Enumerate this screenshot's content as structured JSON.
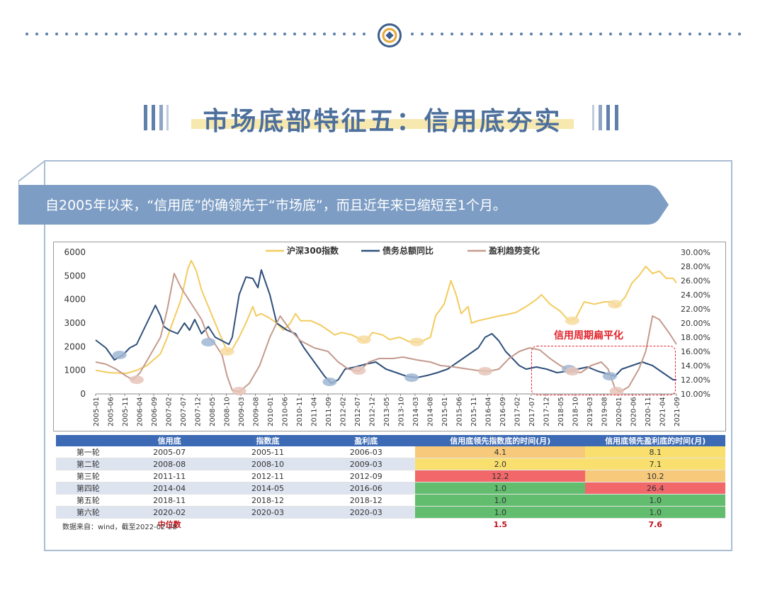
{
  "page": {
    "title": "市场底部特征五：信用底夯实",
    "banner": "自2005年以来，“信用底”的确领先于“市场底”，而且近年来已缩短至1个月。",
    "source": "数据来自：wind，截至2022-02-28"
  },
  "chart_data": {
    "type": "line",
    "annotation": "信用周期扁平化",
    "legend_position": "top",
    "x_ticks": [
      "2005-01",
      "2005-06",
      "2005-11",
      "2006-04",
      "2006-09",
      "2007-02",
      "2007-07",
      "2007-12",
      "2008-05",
      "2008-10",
      "2009-03",
      "2009-08",
      "2010-01",
      "2010-06",
      "2010-11",
      "2011-04",
      "2011-09",
      "2012-02",
      "2012-07",
      "2012-12",
      "2013-05",
      "2013-10",
      "2014-03",
      "2014-08",
      "2015-01",
      "2015-06",
      "2015-11",
      "2016-04",
      "2016-09",
      "2017-02",
      "2017-07",
      "2017-12",
      "2018-05",
      "2018-10",
      "2019-03",
      "2019-08",
      "2020-01",
      "2020-06",
      "2020-11",
      "2021-04",
      "2021-09"
    ],
    "left_axis": {
      "range": [
        0,
        6000
      ],
      "ticks": [
        "0",
        "1000",
        "2000",
        "3000",
        "4000",
        "5000",
        "6000"
      ]
    },
    "right_axis": {
      "range": [
        10,
        30
      ],
      "ticks": [
        "10.00%",
        "12.00%",
        "14.00%",
        "16.00%",
        "18.00%",
        "20.00%",
        "22.00%",
        "24.00%",
        "26.00%",
        "28.00%",
        "30.00%"
      ]
    },
    "x_range": [
      2005.0,
      2022.0
    ],
    "series": [
      {
        "name": "沪深300指数",
        "axis": "left",
        "color": "#f3cb5e",
        "points": [
          [
            2005.0,
            1000
          ],
          [
            2005.4,
            900
          ],
          [
            2005.9,
            870
          ],
          [
            2006.2,
            1000
          ],
          [
            2006.5,
            1200
          ],
          [
            2006.9,
            1700
          ],
          [
            2007.1,
            2400
          ],
          [
            2007.3,
            3200
          ],
          [
            2007.5,
            4000
          ],
          [
            2007.7,
            5300
          ],
          [
            2007.8,
            5650
          ],
          [
            2007.95,
            5200
          ],
          [
            2008.1,
            4400
          ],
          [
            2008.3,
            3700
          ],
          [
            2008.5,
            3000
          ],
          [
            2008.7,
            2300
          ],
          [
            2008.85,
            1800
          ],
          [
            2009.0,
            1900
          ],
          [
            2009.2,
            2400
          ],
          [
            2009.4,
            3000
          ],
          [
            2009.6,
            3700
          ],
          [
            2009.7,
            3300
          ],
          [
            2009.85,
            3400
          ],
          [
            2010.1,
            3200
          ],
          [
            2010.3,
            3000
          ],
          [
            2010.5,
            2700
          ],
          [
            2010.7,
            3000
          ],
          [
            2010.85,
            3400
          ],
          [
            2011.0,
            3100
          ],
          [
            2011.3,
            3100
          ],
          [
            2011.6,
            2900
          ],
          [
            2011.8,
            2700
          ],
          [
            2012.0,
            2500
          ],
          [
            2012.2,
            2600
          ],
          [
            2012.5,
            2500
          ],
          [
            2012.9,
            2200
          ],
          [
            2013.1,
            2600
          ],
          [
            2013.4,
            2500
          ],
          [
            2013.6,
            2300
          ],
          [
            2013.9,
            2400
          ],
          [
            2014.2,
            2200
          ],
          [
            2014.5,
            2200
          ],
          [
            2014.8,
            2400
          ],
          [
            2014.95,
            3300
          ],
          [
            2015.2,
            3800
          ],
          [
            2015.4,
            4800
          ],
          [
            2015.55,
            4200
          ],
          [
            2015.7,
            3400
          ],
          [
            2015.9,
            3700
          ],
          [
            2016.0,
            3000
          ],
          [
            2016.2,
            3100
          ],
          [
            2016.5,
            3200
          ],
          [
            2016.8,
            3300
          ],
          [
            2017.0,
            3350
          ],
          [
            2017.3,
            3450
          ],
          [
            2017.6,
            3700
          ],
          [
            2017.9,
            4000
          ],
          [
            2018.05,
            4200
          ],
          [
            2018.3,
            3800
          ],
          [
            2018.6,
            3500
          ],
          [
            2018.85,
            3100
          ],
          [
            2019.05,
            3200
          ],
          [
            2019.3,
            3900
          ],
          [
            2019.6,
            3800
          ],
          [
            2019.9,
            3900
          ],
          [
            2020.1,
            3900
          ],
          [
            2020.25,
            3700
          ],
          [
            2020.5,
            4100
          ],
          [
            2020.7,
            4700
          ],
          [
            2020.9,
            5000
          ],
          [
            2021.1,
            5400
          ],
          [
            2021.3,
            5100
          ],
          [
            2021.5,
            5200
          ],
          [
            2021.7,
            4900
          ],
          [
            2021.9,
            4900
          ],
          [
            2022.0,
            4700
          ]
        ]
      },
      {
        "name": "债务总额同比",
        "axis": "right",
        "color": "#2f4f7a",
        "points": [
          [
            2005.0,
            17.6
          ],
          [
            2005.3,
            16.5
          ],
          [
            2005.55,
            14.8
          ],
          [
            2005.8,
            15.5
          ],
          [
            2006.0,
            16.5
          ],
          [
            2006.2,
            17.0
          ],
          [
            2006.4,
            19.0
          ],
          [
            2006.6,
            21.0
          ],
          [
            2006.75,
            22.5
          ],
          [
            2006.9,
            21.0
          ],
          [
            2007.0,
            19.5
          ],
          [
            2007.15,
            19.0
          ],
          [
            2007.4,
            18.5
          ],
          [
            2007.6,
            20.0
          ],
          [
            2007.75,
            19.0
          ],
          [
            2007.9,
            20.5
          ],
          [
            2008.1,
            18.5
          ],
          [
            2008.3,
            19.5
          ],
          [
            2008.5,
            18.0
          ],
          [
            2008.7,
            17.5
          ],
          [
            2008.9,
            17.0
          ],
          [
            2009.0,
            18.0
          ],
          [
            2009.2,
            24.0
          ],
          [
            2009.4,
            26.5
          ],
          [
            2009.6,
            26.3
          ],
          [
            2009.75,
            25.0
          ],
          [
            2009.85,
            27.5
          ],
          [
            2010.1,
            24.0
          ],
          [
            2010.3,
            20.0
          ],
          [
            2010.6,
            19.0
          ],
          [
            2010.85,
            18.5
          ],
          [
            2011.1,
            16.5
          ],
          [
            2011.4,
            14.5
          ],
          [
            2011.7,
            12.5
          ],
          [
            2011.9,
            11.5
          ],
          [
            2012.1,
            12.0
          ],
          [
            2012.3,
            13.5
          ],
          [
            2012.6,
            13.8
          ],
          [
            2012.9,
            14.2
          ],
          [
            2013.2,
            14.5
          ],
          [
            2013.5,
            13.5
          ],
          [
            2013.8,
            13.0
          ],
          [
            2014.1,
            12.5
          ],
          [
            2014.4,
            12.3
          ],
          [
            2014.7,
            12.6
          ],
          [
            2015.0,
            13.0
          ],
          [
            2015.3,
            13.5
          ],
          [
            2015.6,
            14.5
          ],
          [
            2015.9,
            15.5
          ],
          [
            2016.2,
            16.5
          ],
          [
            2016.4,
            18.0
          ],
          [
            2016.6,
            18.5
          ],
          [
            2016.8,
            17.5
          ],
          [
            2017.0,
            16.0
          ],
          [
            2017.2,
            15.0
          ],
          [
            2017.4,
            14.0
          ],
          [
            2017.6,
            13.5
          ],
          [
            2017.9,
            13.8
          ],
          [
            2018.2,
            13.5
          ],
          [
            2018.5,
            13.0
          ],
          [
            2018.8,
            13.2
          ],
          [
            2019.1,
            13.5
          ],
          [
            2019.4,
            13.8
          ],
          [
            2019.7,
            13.2
          ],
          [
            2020.0,
            12.8
          ],
          [
            2020.2,
            12.5
          ],
          [
            2020.4,
            13.5
          ],
          [
            2020.7,
            14.0
          ],
          [
            2021.0,
            14.5
          ],
          [
            2021.3,
            14.0
          ],
          [
            2021.6,
            13.0
          ],
          [
            2021.9,
            12.0
          ],
          [
            2022.0,
            12.0
          ]
        ]
      },
      {
        "name": "盈利趋势变化",
        "axis": "right",
        "color": "#c49b8e",
        "points": [
          [
            2005.0,
            14.5
          ],
          [
            2005.3,
            14.2
          ],
          [
            2005.6,
            13.5
          ],
          [
            2005.9,
            12.5
          ],
          [
            2006.1,
            12.0
          ],
          [
            2006.3,
            13.0
          ],
          [
            2006.6,
            15.5
          ],
          [
            2006.9,
            18.0
          ],
          [
            2007.1,
            22.0
          ],
          [
            2007.3,
            27.0
          ],
          [
            2007.5,
            25.0
          ],
          [
            2007.7,
            23.5
          ],
          [
            2007.9,
            22.0
          ],
          [
            2008.1,
            20.5
          ],
          [
            2008.3,
            18.0
          ],
          [
            2008.5,
            17.0
          ],
          [
            2008.7,
            15.5
          ],
          [
            2008.85,
            12.5
          ],
          [
            2009.0,
            10.5
          ],
          [
            2009.2,
            10.3
          ],
          [
            2009.5,
            11.5
          ],
          [
            2009.8,
            14.0
          ],
          [
            2010.1,
            18.0
          ],
          [
            2010.4,
            21.0
          ],
          [
            2010.7,
            19.0
          ],
          [
            2011.0,
            17.5
          ],
          [
            2011.4,
            16.5
          ],
          [
            2011.8,
            16.0
          ],
          [
            2012.1,
            14.5
          ],
          [
            2012.4,
            13.5
          ],
          [
            2012.7,
            13.2
          ],
          [
            2013.0,
            14.5
          ],
          [
            2013.3,
            15.0
          ],
          [
            2013.7,
            15.0
          ],
          [
            2014.0,
            15.2
          ],
          [
            2014.4,
            14.8
          ],
          [
            2014.8,
            14.5
          ],
          [
            2015.1,
            14.0
          ],
          [
            2015.5,
            13.8
          ],
          [
            2015.9,
            13.5
          ],
          [
            2016.2,
            13.3
          ],
          [
            2016.5,
            13.2
          ],
          [
            2016.8,
            13.5
          ],
          [
            2017.1,
            15.0
          ],
          [
            2017.4,
            16.0
          ],
          [
            2017.7,
            16.5
          ],
          [
            2018.0,
            16.2
          ],
          [
            2018.3,
            15.0
          ],
          [
            2018.6,
            14.0
          ],
          [
            2018.9,
            13.2
          ],
          [
            2019.2,
            13.0
          ],
          [
            2019.5,
            14.0
          ],
          [
            2019.8,
            14.5
          ],
          [
            2020.0,
            13.5
          ],
          [
            2020.2,
            10.8
          ],
          [
            2020.35,
            10.3
          ],
          [
            2020.6,
            11.0
          ],
          [
            2020.9,
            13.5
          ],
          [
            2021.1,
            16.0
          ],
          [
            2021.3,
            21.0
          ],
          [
            2021.5,
            20.5
          ],
          [
            2021.8,
            18.5
          ],
          [
            2022.0,
            17.0
          ]
        ]
      }
    ],
    "markers": [
      {
        "series": "债务总额同比",
        "color": "#9fb6d3",
        "points": [
          [
            2005.7,
            15.5
          ],
          [
            2008.3,
            17.3
          ],
          [
            2011.85,
            11.7
          ],
          [
            2014.25,
            12.3
          ],
          [
            2018.85,
            13.5
          ],
          [
            2020.05,
            12.5
          ]
        ]
      },
      {
        "series": "沪深300指数",
        "color": "#f7dca0",
        "points": [
          [
            2008.85,
            1800
          ],
          [
            2012.85,
            2300
          ],
          [
            2014.4,
            2200
          ],
          [
            2018.95,
            3100
          ],
          [
            2020.2,
            3800
          ]
        ]
      },
      {
        "series": "盈利趋势变化",
        "color": "#e6c4b8",
        "points": [
          [
            2006.2,
            12.0
          ],
          [
            2009.2,
            10.4
          ],
          [
            2012.7,
            13.3
          ],
          [
            2016.4,
            13.2
          ],
          [
            2018.95,
            13.2
          ],
          [
            2020.25,
            10.4
          ]
        ]
      }
    ]
  },
  "table": {
    "headers": [
      "",
      "信用底",
      "指数底",
      "盈利底",
      "信用底领先指数底的时间(月)",
      "信用底领先盈利底的时间(月)"
    ],
    "rows": [
      {
        "label": "第一轮",
        "credit": "2005-07",
        "index": "2005-11",
        "profit": "2006-03",
        "lead_index": "4.1",
        "lead_profit": "8.1",
        "c1": "o",
        "c2": "y"
      },
      {
        "label": "第二轮",
        "credit": "2008-08",
        "index": "2008-10",
        "profit": "2009-03",
        "lead_index": "2.0",
        "lead_profit": "7.1",
        "c1": "y",
        "c2": "y"
      },
      {
        "label": "第三轮",
        "credit": "2011-11",
        "index": "2012-11",
        "profit": "2012-09",
        "lead_index": "12.2",
        "lead_profit": "10.2",
        "c1": "r",
        "c2": "o"
      },
      {
        "label": "第四轮",
        "credit": "2014-04",
        "index": "2014-05",
        "profit": "2016-06",
        "lead_index": "1.0",
        "lead_profit": "26.4",
        "c1": "g",
        "c2": "r"
      },
      {
        "label": "第五轮",
        "credit": "2018-11",
        "index": "2018-12",
        "profit": "2018-12",
        "lead_index": "1.0",
        "lead_profit": "1.0",
        "c1": "g",
        "c2": "g"
      },
      {
        "label": "第六轮",
        "credit": "2020-02",
        "index": "2020-03",
        "profit": "2020-03",
        "lead_index": "1.0",
        "lead_profit": "1.0",
        "c1": "g",
        "c2": "g"
      }
    ],
    "median_label": "中位数",
    "median_index": "1.5",
    "median_profit": "7.6"
  },
  "colors": {
    "accent": "#4d6f9c",
    "banner": "#7d9dc4",
    "highlight": "#e2232b"
  }
}
